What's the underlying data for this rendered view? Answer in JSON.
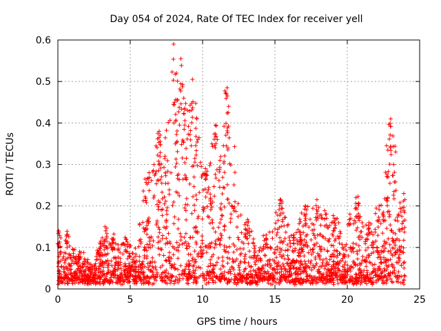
{
  "chart_data": {
    "type": "scatter",
    "title": "Day 054 of 2024, Rate Of TEC Index for receiver yell",
    "xlabel": "GPS time / hours",
    "ylabel": "ROTI / TECUs",
    "xlim": [
      0,
      25
    ],
    "ylim": [
      0,
      0.6
    ],
    "xticks": [
      0,
      5,
      10,
      15,
      20,
      25
    ],
    "yticks": [
      0,
      0.1,
      0.2,
      0.3,
      0.4,
      0.5,
      0.6
    ],
    "xtick_labels": [
      "0",
      "5",
      "10",
      "15",
      "20",
      "25"
    ],
    "ytick_labels": [
      "0",
      "0.1",
      "0.2",
      "0.3",
      "0.4",
      "0.5",
      "0.6"
    ],
    "grid": true,
    "marker": "+",
    "color": "#ff0000",
    "series": [
      {
        "name": "ROTI",
        "envelope_peaks": [
          {
            "x": 0.05,
            "y": 0.14
          },
          {
            "x": 0.6,
            "y": 0.13
          },
          {
            "x": 1.5,
            "y": 0.09
          },
          {
            "x": 3.3,
            "y": 0.14
          },
          {
            "x": 3.8,
            "y": 0.12
          },
          {
            "x": 4.7,
            "y": 0.12
          },
          {
            "x": 6.3,
            "y": 0.28
          },
          {
            "x": 7.0,
            "y": 0.38
          },
          {
            "x": 7.4,
            "y": 0.32
          },
          {
            "x": 8.0,
            "y": 0.59
          },
          {
            "x": 8.2,
            "y": 0.52
          },
          {
            "x": 8.5,
            "y": 0.555
          },
          {
            "x": 8.7,
            "y": 0.46
          },
          {
            "x": 9.3,
            "y": 0.505
          },
          {
            "x": 9.6,
            "y": 0.41
          },
          {
            "x": 10.2,
            "y": 0.29
          },
          {
            "x": 10.9,
            "y": 0.395
          },
          {
            "x": 11.2,
            "y": 0.31
          },
          {
            "x": 11.7,
            "y": 0.485
          },
          {
            "x": 11.8,
            "y": 0.44
          },
          {
            "x": 13.0,
            "y": 0.16
          },
          {
            "x": 14.4,
            "y": 0.13
          },
          {
            "x": 15.4,
            "y": 0.215
          },
          {
            "x": 16.3,
            "y": 0.13
          },
          {
            "x": 16.8,
            "y": 0.12
          },
          {
            "x": 17.1,
            "y": 0.2
          },
          {
            "x": 17.9,
            "y": 0.215
          },
          {
            "x": 18.5,
            "y": 0.18
          },
          {
            "x": 19.1,
            "y": 0.17
          },
          {
            "x": 20.6,
            "y": 0.22
          },
          {
            "x": 21.5,
            "y": 0.16
          },
          {
            "x": 22.2,
            "y": 0.2
          },
          {
            "x": 22.8,
            "y": 0.22
          },
          {
            "x": 23.0,
            "y": 0.41
          },
          {
            "x": 23.2,
            "y": 0.3
          },
          {
            "x": 23.9,
            "y": 0.23
          }
        ],
        "range_x": [
          0,
          24
        ],
        "typical_floor": 0.01
      }
    ]
  }
}
